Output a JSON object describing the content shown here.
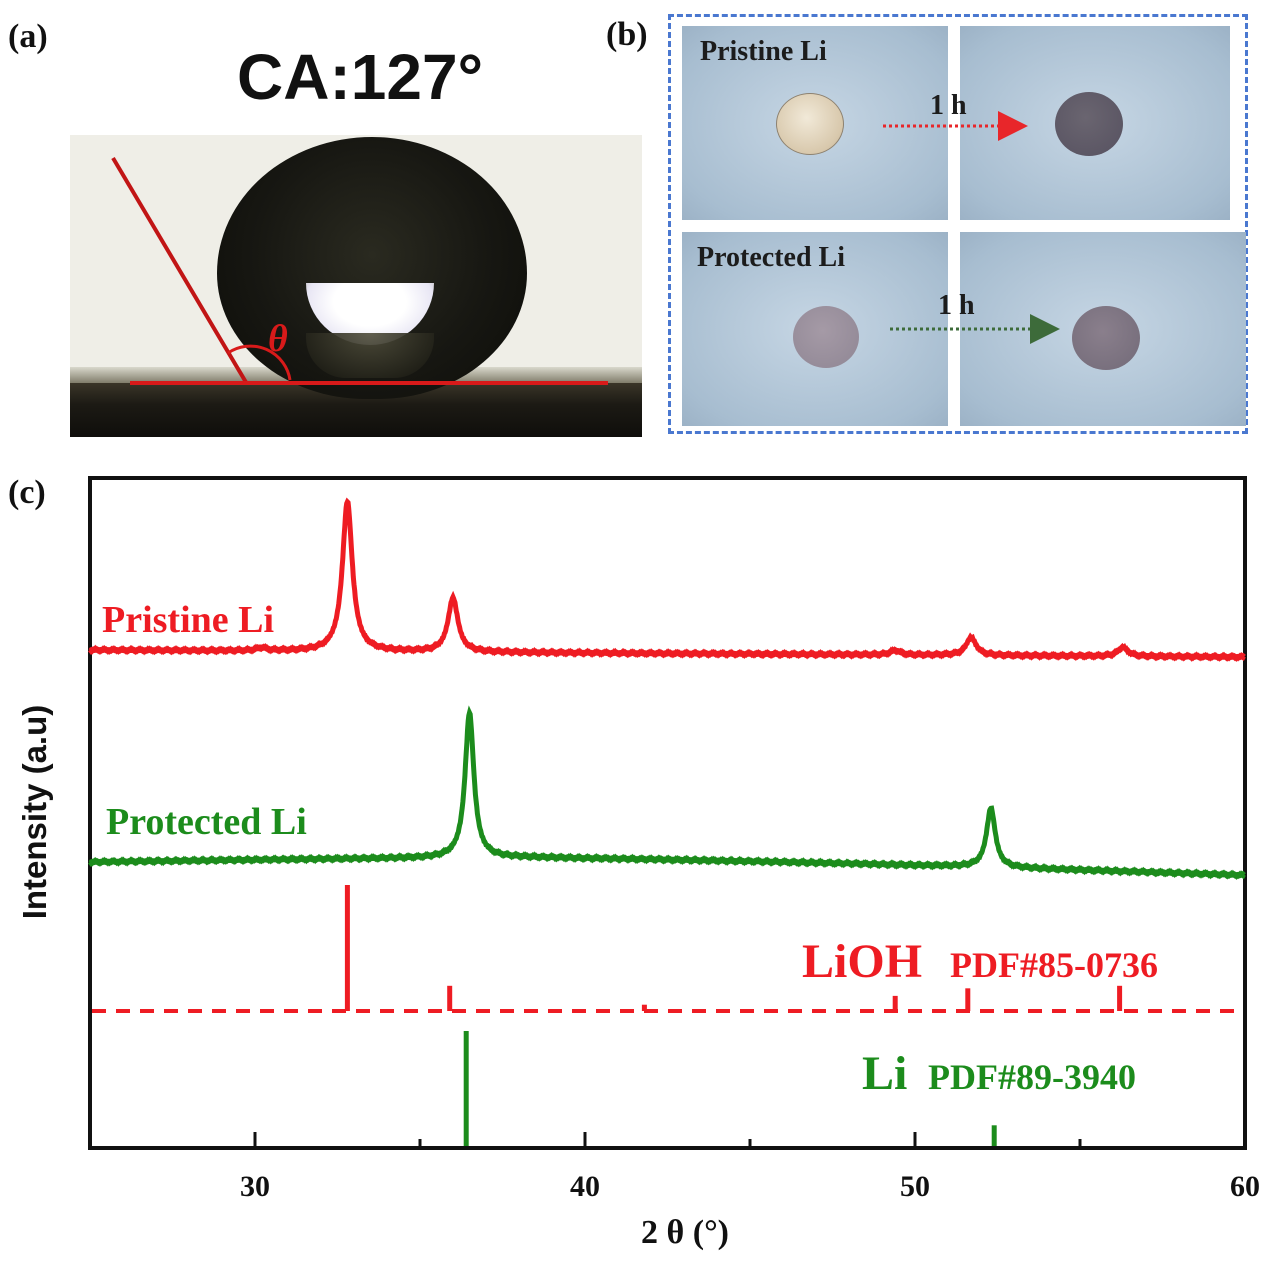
{
  "panels": {
    "a": {
      "label": "(a)",
      "contact_angle_text": "CA:127°",
      "theta_symbol": "θ"
    },
    "b": {
      "label": "(b)",
      "row1_label": "Pristine Li",
      "row2_label": "Protected Li",
      "time_row1": "1 h",
      "time_row2": "1 h",
      "arrow_row1_color": "#e8262a",
      "arrow_row2_color": "#3d6b3a",
      "frame_color": "#4a78d0"
    },
    "c": {
      "label": "(c)"
    }
  },
  "chart_data": {
    "type": "line",
    "xlabel": "2 θ (°)",
    "ylabel": "Intensity (a.u)",
    "xlim": [
      25,
      60
    ],
    "xticks": [
      "30",
      "40",
      "50",
      "60"
    ],
    "series": [
      {
        "name": "Pristine Li",
        "color": "#ee1c23",
        "peaks": [
          {
            "x": 32.8,
            "height": 1.0
          },
          {
            "x": 36.0,
            "height": 0.36
          },
          {
            "x": 51.7,
            "height": 0.12
          },
          {
            "x": 56.3,
            "height": 0.06
          },
          {
            "x": 49.4,
            "height": 0.03
          },
          {
            "x": 30.2,
            "height": 0.02
          }
        ]
      },
      {
        "name": "Protected Li",
        "color": "#1c8c1c",
        "peaks": [
          {
            "x": 36.5,
            "height": 1.0
          },
          {
            "x": 52.3,
            "height": 0.41
          }
        ]
      }
    ],
    "references": [
      {
        "compound": "LiOH",
        "pdf": "PDF#85-0736",
        "color": "#ee1c23",
        "sticks": [
          {
            "x": 32.8,
            "height": 1.0
          },
          {
            "x": 35.9,
            "height": 0.2
          },
          {
            "x": 41.8,
            "height": 0.05
          },
          {
            "x": 49.4,
            "height": 0.12
          },
          {
            "x": 51.6,
            "height": 0.18
          },
          {
            "x": 56.2,
            "height": 0.2
          }
        ]
      },
      {
        "compound": "Li",
        "pdf": "PDF#89-3940",
        "color": "#1c8c1c",
        "sticks": [
          {
            "x": 36.4,
            "height": 1.0
          },
          {
            "x": 52.4,
            "height": 0.18
          }
        ]
      }
    ]
  }
}
